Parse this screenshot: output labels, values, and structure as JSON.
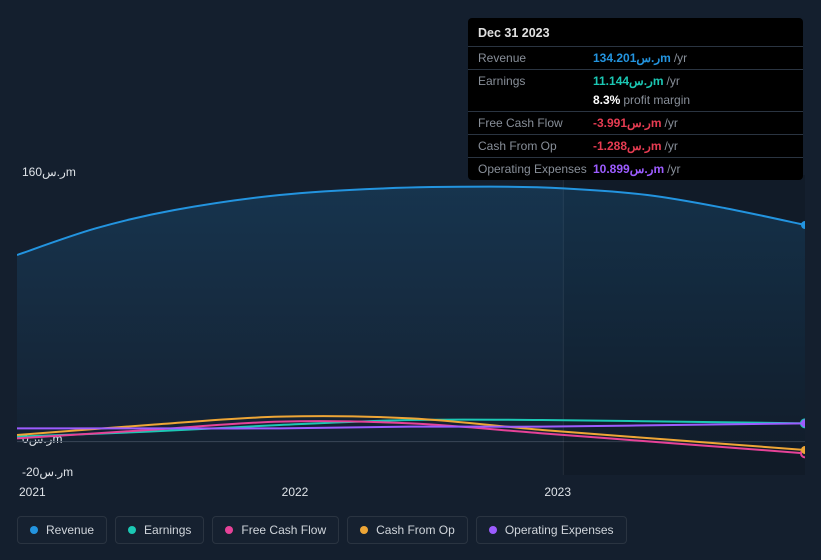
{
  "tooltip": {
    "date": "Dec 31 2023",
    "rows": [
      {
        "label": "Revenue",
        "value": "134.201ر.سm",
        "unit": "/yr",
        "color": "#2394df"
      },
      {
        "label": "Earnings",
        "value": "11.144ر.سm",
        "unit": "/yr",
        "color": "#1bc8b4"
      },
      {
        "label": "",
        "value": "8.3%",
        "unit": "profit margin",
        "color": "#ffffff",
        "noborder": true
      },
      {
        "label": "Free Cash Flow",
        "value": "-3.991ر.سm",
        "unit": "/yr",
        "color": "#e73c52"
      },
      {
        "label": "Cash From Op",
        "value": "-1.288ر.سm",
        "unit": "/yr",
        "color": "#e73c52"
      },
      {
        "label": "Operating Expenses",
        "value": "10.899ر.سm",
        "unit": "/yr",
        "color": "#9c5cff"
      }
    ]
  },
  "chart": {
    "background": "#141f2e",
    "plot_bg_gradient_top": "#1a2942",
    "plot_bg_gradient_bottom": "#141f2e",
    "ylim": [
      -20,
      160
    ],
    "yticks": [
      {
        "v": 160,
        "label": "160ر.سm"
      },
      {
        "v": 0,
        "label": "0ر.سm"
      },
      {
        "v": -20,
        "label": "-20ر.سm"
      }
    ],
    "xrange": [
      2021,
      2024
    ],
    "xticks": [
      {
        "v": 2021,
        "label": "2021"
      },
      {
        "v": 2022,
        "label": "2022"
      },
      {
        "v": 2023,
        "label": "2023"
      }
    ],
    "highlight_x": 2023.08,
    "series": [
      {
        "name": "Revenue",
        "color": "#2394df",
        "fill": true,
        "fill_opacity": 0.12,
        "points": [
          [
            2021,
            112
          ],
          [
            2021.3,
            128
          ],
          [
            2021.6,
            139
          ],
          [
            2022,
            148
          ],
          [
            2022.4,
            152
          ],
          [
            2022.8,
            153
          ],
          [
            2023.08,
            152
          ],
          [
            2023.4,
            148
          ],
          [
            2023.7,
            140
          ],
          [
            2024,
            130
          ]
        ],
        "endpoint": true
      },
      {
        "name": "Earnings",
        "color": "#1bc8b4",
        "fill": false,
        "points": [
          [
            2021,
            3
          ],
          [
            2021.5,
            6
          ],
          [
            2022,
            10
          ],
          [
            2022.5,
            13
          ],
          [
            2023,
            13
          ],
          [
            2023.5,
            12
          ],
          [
            2024,
            11
          ]
        ],
        "endpoint": true,
        "endpoint_style": "ring"
      },
      {
        "name": "Free Cash Flow",
        "color": "#e64298",
        "fill": false,
        "points": [
          [
            2021,
            2
          ],
          [
            2021.5,
            7
          ],
          [
            2022,
            12
          ],
          [
            2022.5,
            11
          ],
          [
            2023,
            5
          ],
          [
            2023.5,
            -1
          ],
          [
            2024,
            -7
          ]
        ],
        "endpoint": true,
        "endpoint_style": "ring"
      },
      {
        "name": "Cash From Op",
        "color": "#eea636",
        "fill": false,
        "points": [
          [
            2021,
            4
          ],
          [
            2021.5,
            10
          ],
          [
            2022,
            15
          ],
          [
            2022.5,
            14
          ],
          [
            2023,
            7
          ],
          [
            2023.5,
            1
          ],
          [
            2024,
            -5
          ]
        ],
        "endpoint": true
      },
      {
        "name": "Operating Expenses",
        "color": "#9c5cff",
        "fill": false,
        "points": [
          [
            2021,
            8
          ],
          [
            2021.5,
            8
          ],
          [
            2022,
            8
          ],
          [
            2022.5,
            9
          ],
          [
            2023,
            9
          ],
          [
            2023.5,
            10
          ],
          [
            2024,
            11
          ]
        ],
        "endpoint": true
      }
    ],
    "line_width": 2,
    "endpoint_radius": 4
  },
  "legend": [
    {
      "label": "Revenue",
      "color": "#2394df"
    },
    {
      "label": "Earnings",
      "color": "#1bc8b4"
    },
    {
      "label": "Free Cash Flow",
      "color": "#e64298"
    },
    {
      "label": "Cash From Op",
      "color": "#eea636"
    },
    {
      "label": "Operating Expenses",
      "color": "#9c5cff"
    }
  ]
}
